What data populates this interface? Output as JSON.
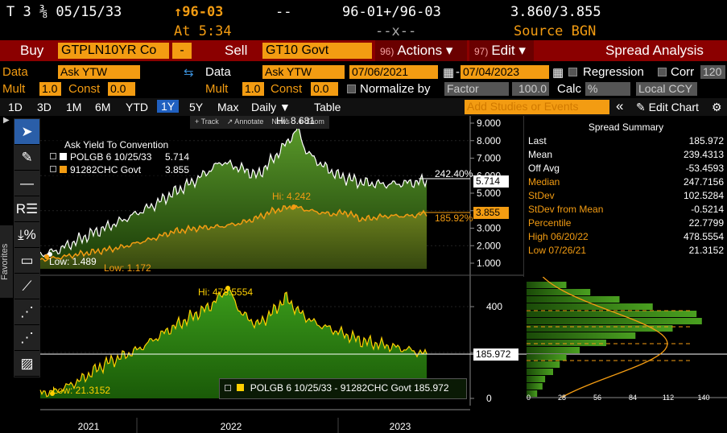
{
  "ticker": {
    "name": "T 3 ⅜ 05/15/33",
    "price": "↑96-03",
    "dashes1": "--",
    "bidask": "96-01+/96-03",
    "yields": "3.860/3.855",
    "time": "At 5:34",
    "dashes2": "--x--",
    "source": "Source BGN"
  },
  "cmdbar": {
    "buy_label": "Buy",
    "buy_security": "GTPLN10YR Co",
    "buy_dropdown": "-",
    "sell_label": "Sell",
    "sell_security": "GT10 Govt",
    "actions_num": "96)",
    "actions_label": "Actions ▾",
    "edit_num": "97)",
    "edit_label": "Edit ▾",
    "spread_label": "Spread Analysis"
  },
  "controls1": {
    "data_label": "Data",
    "data_value": "Ask YTW",
    "data2_label": "Data",
    "data2_value": "Ask YTW",
    "start_date": "07/06/2021",
    "dash": "-",
    "end_date": "07/04/2023",
    "regression_label": "Regression",
    "corr_label": "Corr",
    "corr_value": "120"
  },
  "controls2": {
    "mult_label": "Mult",
    "mult_value": "1.0",
    "const_label": "Const",
    "const_value": "0.0",
    "mult2_label": "Mult",
    "mult2_value": "1.0",
    "const2_label": "Const",
    "const2_value": "0.0",
    "normalize_label": "Normalize by",
    "factor_value": "Factor",
    "factor_num": "100.0",
    "calc_label": "Calc",
    "calc_value": "%",
    "ccy_value": "Local CCY"
  },
  "periods": {
    "items": [
      "1D",
      "3D",
      "1M",
      "6M",
      "YTD",
      "1Y",
      "5Y",
      "Max"
    ],
    "selected": "1Y",
    "daily": "Daily ▼",
    "table": "Table",
    "studies_placeholder": "Add Studies or Events",
    "collapse": "«",
    "edit_chart": "✎ Edit Chart",
    "gear": "⚙"
  },
  "top_chart": {
    "tools": [
      "+ Track",
      "↗ Annotate",
      "News",
      "⊕ Zoom"
    ],
    "hi_pol": "Hi: 8.681",
    "hi_us": "Hi: 4.242",
    "low_pol": "Low: 1.489",
    "low_us": "Low: 1.172",
    "pct_pol": "242.40%",
    "pct_us": "185.92%",
    "last_pol": "5.714",
    "last_us": "3.855",
    "legend_title": "Ask Yield To Convention",
    "legend": [
      {
        "name": "POLGB 6 10/25/33",
        "value": "5.714",
        "color": "#ffffff"
      },
      {
        "name": "91282CHC Govt",
        "value": "3.855",
        "color": "#f39c12"
      }
    ],
    "yticks": [
      "9.000",
      "8.000",
      "7.000",
      "6.000",
      "5.000",
      "4.000",
      "3.000",
      "2.000",
      "1.000"
    ]
  },
  "bottom_chart": {
    "hi": "Hi: 478.5554",
    "low": "Low: 21.3152",
    "last": "185.972",
    "legend": "POLGB 6 10/25/33 - 91282CHC Govt 185.972",
    "yticks": [
      "400",
      "200",
      "0"
    ],
    "hist_ticks": [
      "0",
      "28",
      "56",
      "84",
      "112",
      "140"
    ],
    "xlabels": [
      "2021",
      "2022",
      "2023"
    ]
  },
  "summary": {
    "title": "Spread Summary",
    "rows": [
      {
        "k": "Last",
        "v": "185.972",
        "color": "#ffffff"
      },
      {
        "k": "Mean",
        "v": "239.4313",
        "color": "#ffffff"
      },
      {
        "k": "Off Avg",
        "v": "-53.4593",
        "color": "#ffffff"
      },
      {
        "k": "Median",
        "v": "247.7156",
        "color": "#f39c12"
      },
      {
        "k": "StDev",
        "v": "102.5284",
        "color": "#f39c12"
      },
      {
        "k": "StDev from Mean",
        "v": "-0.5214",
        "color": "#f39c12"
      },
      {
        "k": "Percentile",
        "v": "22.7799",
        "color": "#f39c12"
      },
      {
        "k": "High 06/20/22",
        "v": "478.5554",
        "color": "#f39c12"
      },
      {
        "k": "Low 07/26/21",
        "v": "21.3152",
        "color": "#f39c12"
      }
    ]
  },
  "sidebar": {
    "favorites": "Favorites"
  },
  "colors": {
    "accent": "#f39c12",
    "bar": "#8b0000",
    "green": "#3a8a1a"
  }
}
